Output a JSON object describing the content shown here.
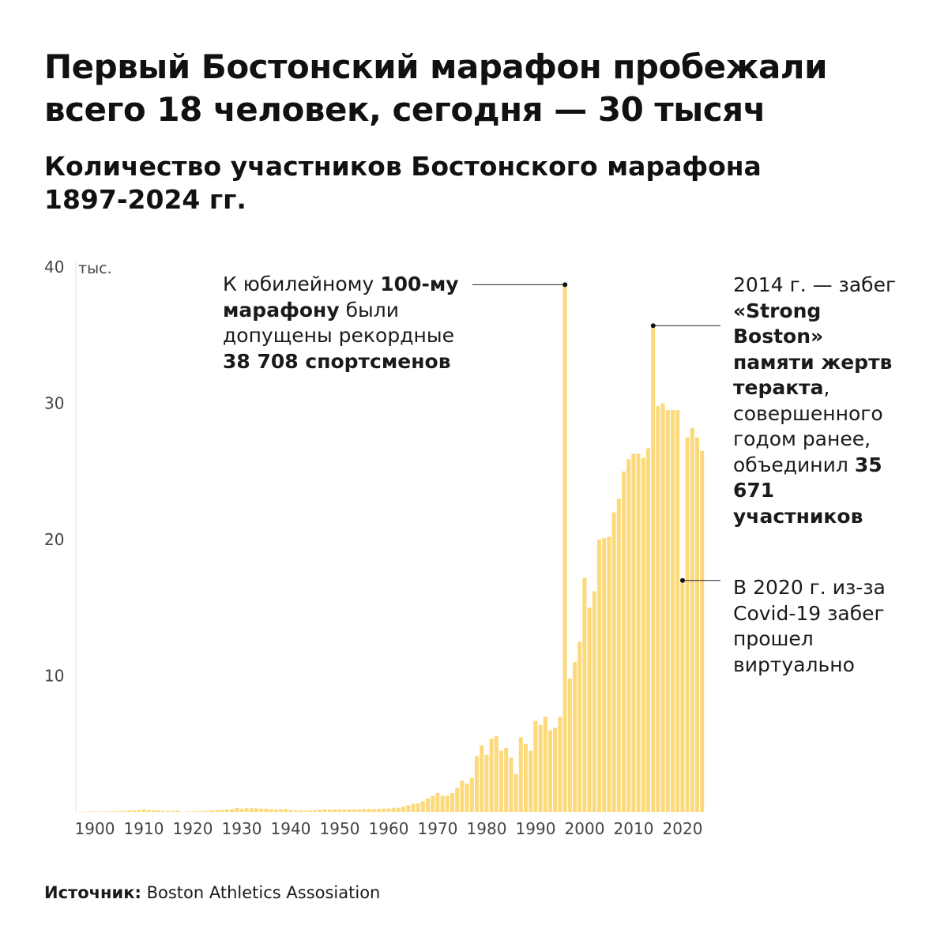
{
  "header": {
    "title": "Первый Бостонский марафон пробежали всего 18 человек, сегодня — 30 тысяч",
    "subtitle": "Количество участников Бостонского марафона 1897-2024 гг."
  },
  "annotations": {
    "centennial": {
      "text_1": "К юбилейному ",
      "bold_1": "100-му марафону",
      "text_2": " были допущены рекордные ",
      "bold_2": "38 708 спортсменов"
    },
    "strong_boston": {
      "text_1": "2014 г. — забег ",
      "bold_1": "«Strong Boston» памяти жертв теракта",
      "text_2": ", совершенного годом ранее, объединил ",
      "bold_2": "35 671 участников"
    },
    "covid": {
      "text": "В 2020 г. из-за Covid-19 забег прошел виртуально"
    }
  },
  "source": {
    "label": "Источник:",
    "value": "Boston Athletics Assosiation"
  },
  "colors": {
    "bar": "#FCD97A",
    "text": "#111111",
    "axis": "#dddddd"
  },
  "chart_data": {
    "type": "bar",
    "title": "Количество участников Бостонского марафона 1897-2024 гг.",
    "unit_label": "тыс.",
    "y_unit": "thousands",
    "ylim": [
      0,
      40
    ],
    "y_ticks": [
      10,
      20,
      30,
      40
    ],
    "x_ticks": [
      1900,
      1910,
      1920,
      1930,
      1940,
      1950,
      1960,
      1970,
      1980,
      1990,
      2000,
      2010,
      2020
    ],
    "grid": false,
    "legend": "none",
    "x": [
      1897,
      1898,
      1899,
      1900,
      1901,
      1902,
      1903,
      1904,
      1905,
      1906,
      1907,
      1908,
      1909,
      1910,
      1911,
      1912,
      1913,
      1914,
      1915,
      1916,
      1917,
      1918,
      1919,
      1920,
      1921,
      1922,
      1923,
      1924,
      1925,
      1926,
      1927,
      1928,
      1929,
      1930,
      1931,
      1932,
      1933,
      1934,
      1935,
      1936,
      1937,
      1938,
      1939,
      1940,
      1941,
      1942,
      1943,
      1944,
      1945,
      1946,
      1947,
      1948,
      1949,
      1950,
      1951,
      1952,
      1953,
      1954,
      1955,
      1956,
      1957,
      1958,
      1959,
      1960,
      1961,
      1962,
      1963,
      1964,
      1965,
      1966,
      1967,
      1968,
      1969,
      1970,
      1971,
      1972,
      1973,
      1974,
      1975,
      1976,
      1977,
      1978,
      1979,
      1980,
      1981,
      1982,
      1983,
      1984,
      1985,
      1986,
      1987,
      1988,
      1989,
      1990,
      1991,
      1992,
      1993,
      1994,
      1995,
      1996,
      1997,
      1998,
      1999,
      2000,
      2001,
      2002,
      2003,
      2004,
      2005,
      2006,
      2007,
      2008,
      2009,
      2010,
      2011,
      2012,
      2013,
      2014,
      2015,
      2016,
      2017,
      2018,
      2019,
      2020,
      2021,
      2022,
      2023,
      2024
    ],
    "values": [
      0.02,
      0.03,
      0.04,
      0.05,
      0.04,
      0.05,
      0.05,
      0.06,
      0.08,
      0.1,
      0.12,
      0.13,
      0.16,
      0.2,
      0.16,
      0.14,
      0.12,
      0.1,
      0.1,
      0.1,
      0.1,
      null,
      0.05,
      0.06,
      0.06,
      0.08,
      0.1,
      0.12,
      0.15,
      0.18,
      0.2,
      0.22,
      0.3,
      0.25,
      0.28,
      0.28,
      0.28,
      0.25,
      0.25,
      0.22,
      0.2,
      0.22,
      0.22,
      0.16,
      0.12,
      0.12,
      0.1,
      0.12,
      0.14,
      0.18,
      0.2,
      0.2,
      0.2,
      0.2,
      0.2,
      0.2,
      0.2,
      0.2,
      0.22,
      0.22,
      0.22,
      0.24,
      0.26,
      0.26,
      0.3,
      0.32,
      0.4,
      0.5,
      0.6,
      0.65,
      0.8,
      1.0,
      1.2,
      1.4,
      1.2,
      1.2,
      1.4,
      1.8,
      2.3,
      2.1,
      2.5,
      4.1,
      4.9,
      4.2,
      5.4,
      5.6,
      4.5,
      4.7,
      4.0,
      2.8,
      5.5,
      5.0,
      4.5,
      6.7,
      6.4,
      7.0,
      6.0,
      6.2,
      7.0,
      38.7,
      9.8,
      11.0,
      12.5,
      17.2,
      15.0,
      16.2,
      20.0,
      20.1,
      20.2,
      22.0,
      23.0,
      25.0,
      25.9,
      26.3,
      26.3,
      26.0,
      26.7,
      35.7,
      29.8,
      30.0,
      29.5,
      29.5,
      29.5,
      17.0,
      27.5,
      28.2,
      27.5,
      26.5
    ]
  }
}
